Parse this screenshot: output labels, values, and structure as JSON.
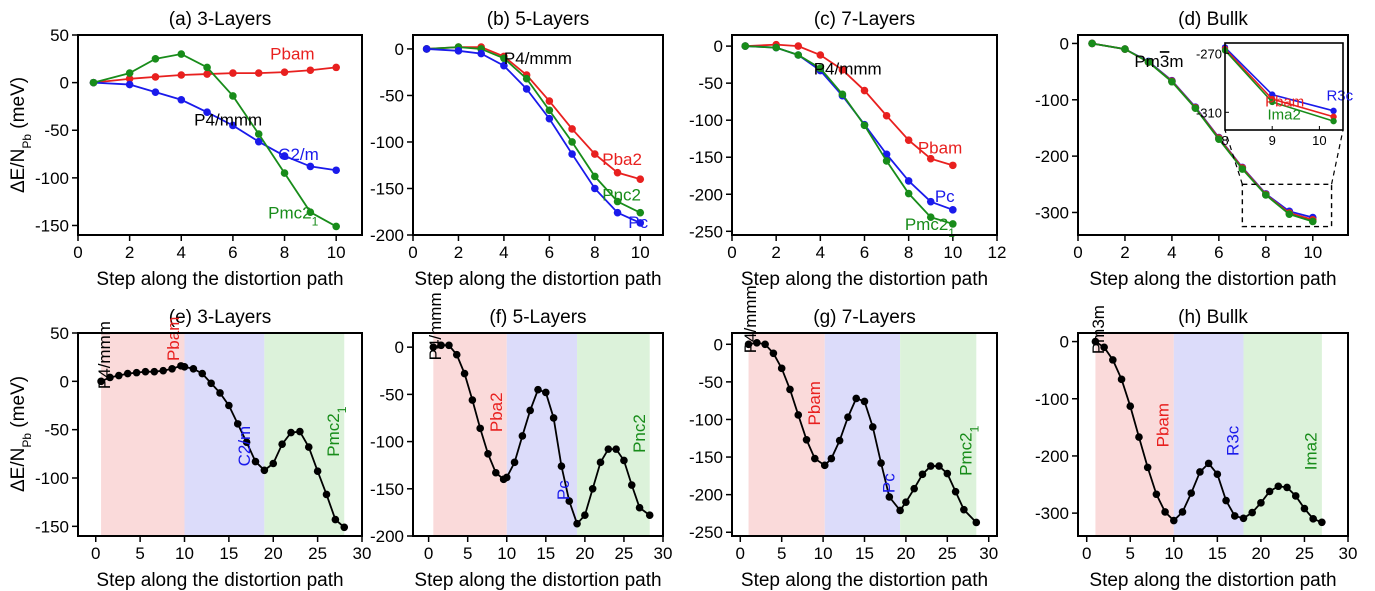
{
  "figure": {
    "ylabel_main": "ΔE/N",
    "ylabel_sub": "Pb",
    "ylabel_unit": " (meV)"
  },
  "colors": {
    "red": "#e8201f",
    "blue": "#1a1aeb",
    "green": "#188c1a",
    "black": "#000000",
    "band_red": "#fadada",
    "band_blue": "#dcdcfa",
    "band_green": "#dcf2da"
  },
  "chart_data": [
    {
      "id": "a",
      "type": "line",
      "title": "(a) 3-Layers",
      "xlabel": "Step along the distortion path",
      "xlim": [
        0,
        11
      ],
      "ylim": [
        -160,
        50
      ],
      "xticks": [
        0,
        2,
        4,
        6,
        8,
        10
      ],
      "yticks": [
        50,
        0,
        -50,
        -100,
        -150
      ],
      "series": [
        {
          "name": "Pbam",
          "color": "red",
          "x": [
            0.6,
            2,
            3,
            4,
            5,
            6,
            7,
            8,
            9,
            10
          ],
          "y": [
            0,
            4,
            6,
            8,
            9,
            10,
            10,
            11,
            13,
            16
          ]
        },
        {
          "name": "C2/m",
          "color": "blue",
          "x": [
            0.6,
            2,
            3,
            4,
            5,
            6,
            7,
            8,
            9,
            10
          ],
          "y": [
            0,
            -2,
            -10,
            -18,
            -31,
            -45,
            -62,
            -77,
            -88,
            -92
          ]
        },
        {
          "name": "Pmc2",
          "sub": "1",
          "color": "green",
          "x": [
            0.6,
            2,
            3,
            4,
            5,
            6,
            7,
            8,
            9,
            10
          ],
          "y": [
            0,
            10,
            25,
            30,
            16,
            -14,
            -54,
            -95,
            -136,
            -151
          ]
        }
      ],
      "labels": [
        {
          "text": "P4/mmm",
          "color": "black",
          "x": 4.5,
          "y": -45
        }
      ]
    },
    {
      "id": "b",
      "type": "line",
      "title": "(b) 5-Layers",
      "xlabel": "Step along the distortion path",
      "xlim": [
        0,
        11
      ],
      "ylim": [
        -200,
        15
      ],
      "xticks": [
        0,
        2,
        4,
        6,
        8,
        10
      ],
      "yticks": [
        0,
        -50,
        -100,
        -150,
        -200
      ],
      "series": [
        {
          "name": "Pba2",
          "color": "red",
          "x": [
            0.6,
            2,
            3,
            4,
            5,
            6,
            7,
            8,
            9,
            10
          ],
          "y": [
            0,
            2,
            2,
            -8,
            -28,
            -56,
            -86,
            -113,
            -133,
            -140
          ]
        },
        {
          "name": "Pnc2",
          "color": "green",
          "x": [
            0.6,
            2,
            3,
            4,
            5,
            6,
            7,
            8,
            9,
            10
          ],
          "y": [
            0,
            2,
            0,
            -10,
            -32,
            -66,
            -100,
            -137,
            -164,
            -176
          ]
        },
        {
          "name": "Pc",
          "color": "blue",
          "x": [
            0.6,
            2,
            3,
            4,
            5,
            6,
            7,
            8,
            9,
            10
          ],
          "y": [
            0,
            -2,
            -5,
            -18,
            -43,
            -75,
            -113,
            -150,
            -176,
            -187
          ]
        }
      ],
      "labels": [
        {
          "text": "P4/mmm",
          "color": "black",
          "x": 4.0,
          "y": -16
        }
      ]
    },
    {
      "id": "c",
      "type": "line",
      "title": "(c) 7-Layers",
      "xlabel": "Step along the distortion path",
      "xlim": [
        0,
        12
      ],
      "ylim": [
        -255,
        15
      ],
      "xticks": [
        0,
        2,
        4,
        6,
        8,
        10,
        12
      ],
      "yticks": [
        0,
        -50,
        -100,
        -150,
        -200,
        -250
      ],
      "series": [
        {
          "name": "Pbam",
          "color": "red",
          "x": [
            0.6,
            2,
            3,
            4,
            5,
            6,
            7,
            8,
            9,
            10
          ],
          "y": [
            0,
            2,
            0,
            -12,
            -32,
            -60,
            -94,
            -127,
            -152,
            -161
          ]
        },
        {
          "name": "Pc",
          "color": "blue",
          "x": [
            0.6,
            2,
            3,
            4,
            5,
            6,
            7,
            8,
            9,
            10
          ],
          "y": [
            0,
            -2,
            -12,
            -33,
            -67,
            -106,
            -146,
            -182,
            -210,
            -221
          ]
        },
        {
          "name": "Pmc2",
          "sub": "1",
          "color": "green",
          "x": [
            0.6,
            2,
            3,
            4,
            5,
            6,
            7,
            8,
            9,
            10
          ],
          "y": [
            0,
            -2,
            -12,
            -30,
            -65,
            -107,
            -155,
            -199,
            -231,
            -240
          ]
        }
      ],
      "labels": [
        {
          "text": "P4/mmm",
          "color": "black",
          "x": 3.7,
          "y": -38
        }
      ]
    },
    {
      "id": "d",
      "type": "line",
      "title": "(d) Bullk",
      "xlabel": "Step along the distortion path",
      "xlim": [
        0,
        11.5
      ],
      "ylim": [
        -340,
        15
      ],
      "xticks": [
        0,
        2,
        4,
        6,
        8,
        10
      ],
      "yticks": [
        0,
        -100,
        -200,
        -300
      ],
      "series": [
        {
          "name": "R3c",
          "color": "blue",
          "x": [
            0.6,
            2,
            3,
            4,
            5,
            6,
            7,
            8,
            9,
            10
          ],
          "y": [
            0,
            -10,
            -32,
            -66,
            -113,
            -167,
            -220,
            -267,
            -298,
            -309
          ]
        },
        {
          "name": "Pbam",
          "color": "red",
          "x": [
            0.6,
            2,
            3,
            4,
            5,
            6,
            7,
            8,
            9,
            10
          ],
          "y": [
            0,
            -10,
            -33,
            -67,
            -114,
            -168,
            -221,
            -268,
            -301,
            -313
          ]
        },
        {
          "name": "Ima2",
          "color": "green",
          "x": [
            0.6,
            2,
            3,
            4,
            5,
            6,
            7,
            8,
            9,
            10
          ],
          "y": [
            0,
            -10,
            -33,
            -68,
            -115,
            -170,
            -223,
            -269,
            -303,
            -316
          ]
        }
      ],
      "labels": [
        {
          "text": "Pm3m",
          "color": "black",
          "x": 2.4,
          "y": -42
        }
      ],
      "inset": {
        "xlim": [
          8,
          10.5
        ],
        "ylim": [
          -322,
          -263
        ],
        "xticks": [
          8,
          9,
          10
        ],
        "yticks": [
          -270,
          -310
        ],
        "series": [
          {
            "color": "blue",
            "x": [
              8,
              9,
              10.3
            ],
            "y": [
              -266,
              -298,
              -309
            ]
          },
          {
            "color": "red",
            "x": [
              8,
              9,
              10.3
            ],
            "y": [
              -267,
              -301,
              -313
            ]
          },
          {
            "color": "green",
            "x": [
              8,
              9,
              10.3
            ],
            "y": [
              -268,
              -303,
              -316
            ]
          }
        ],
        "labels": [
          {
            "text": "R3c",
            "color": "blue",
            "x": 10.15,
            "y": -302
          },
          {
            "text": "Pbam",
            "color": "red",
            "x": 8.85,
            "y": -306
          },
          {
            "text": "Ima2",
            "color": "green",
            "x": 8.9,
            "y": -315
          }
        ],
        "zoom_box": {
          "x": [
            7.0,
            10.8
          ],
          "y": [
            -250,
            -325
          ]
        }
      }
    },
    {
      "id": "e",
      "type": "line",
      "title": "(e) 3-Layers",
      "xlabel": "Step along the distortion path",
      "xlim": [
        -2,
        30
      ],
      "ylim": [
        -160,
        50
      ],
      "xticks": [
        0,
        5,
        10,
        15,
        20,
        25,
        30
      ],
      "yticks": [
        50,
        0,
        -50,
        -100,
        -150
      ],
      "bands": [
        {
          "color": "band_red",
          "x": [
            0.6,
            10
          ]
        },
        {
          "color": "band_blue",
          "x": [
            10,
            19
          ]
        },
        {
          "color": "band_green",
          "x": [
            19,
            28
          ]
        }
      ],
      "series": [
        {
          "color": "black",
          "x": [
            0.6,
            1.6,
            2.6,
            3.6,
            4.6,
            5.6,
            6.6,
            7.6,
            8.6,
            9.6,
            10,
            11,
            12,
            13,
            14,
            15,
            16,
            17,
            18,
            19,
            20,
            21,
            22,
            23,
            24,
            25,
            26,
            27,
            28
          ],
          "y": [
            0,
            4,
            6,
            8,
            9,
            10,
            10,
            11,
            13,
            16,
            15,
            13,
            8,
            -2,
            -12,
            -25,
            -44,
            -63,
            -83,
            -92,
            -85,
            -65,
            -53,
            -52,
            -68,
            -93,
            -117,
            -143,
            -151
          ]
        }
      ],
      "labels": [
        {
          "text": "P4/mmm",
          "color": "black",
          "x": 1.6,
          "y": -8,
          "rotate": true
        },
        {
          "text": "Pbam",
          "color": "red",
          "x": 9.4,
          "y": 21,
          "rotate": true
        },
        {
          "text": "C2/m",
          "color": "blue",
          "x": 17.4,
          "y": -88,
          "rotate": true
        },
        {
          "text": "Pmc2",
          "sub": "1",
          "color": "green",
          "x": 27.4,
          "y": -78,
          "rotate": true
        }
      ]
    },
    {
      "id": "f",
      "type": "line",
      "title": "(f) 5-Layers",
      "xlabel": "Step along the distortion path",
      "xlim": [
        -2,
        30
      ],
      "ylim": [
        -200,
        15
      ],
      "xticks": [
        0,
        5,
        10,
        15,
        20,
        25,
        30
      ],
      "yticks": [
        0,
        -50,
        -100,
        -150,
        -200
      ],
      "bands": [
        {
          "color": "band_red",
          "x": [
            0.6,
            10
          ]
        },
        {
          "color": "band_blue",
          "x": [
            10,
            19
          ]
        },
        {
          "color": "band_green",
          "x": [
            19,
            28.3
          ]
        }
      ],
      "series": [
        {
          "color": "black",
          "x": [
            0.6,
            1.6,
            2.6,
            3.6,
            4.6,
            5.6,
            6.6,
            7.6,
            8.6,
            9.6,
            10,
            11,
            12,
            13,
            14,
            15,
            16,
            17,
            18,
            19,
            20,
            21,
            22,
            23,
            24,
            25,
            26,
            27,
            28.3
          ],
          "y": [
            0,
            2,
            2,
            -8,
            -28,
            -56,
            -86,
            -113,
            -133,
            -140,
            -138,
            -122,
            -94,
            -67,
            -45,
            -48,
            -75,
            -126,
            -163,
            -187,
            -178,
            -150,
            -122,
            -108,
            -108,
            -120,
            -146,
            -170,
            -178
          ]
        }
      ],
      "labels": [
        {
          "text": "P4/mmm",
          "color": "black",
          "x": 1.6,
          "y": -14,
          "rotate": true
        },
        {
          "text": "Pba2",
          "color": "red",
          "x": 9.4,
          "y": -90,
          "rotate": true
        },
        {
          "text": "Pc",
          "color": "blue",
          "x": 18.0,
          "y": -162,
          "rotate": true
        },
        {
          "text": "Pnc2",
          "color": "green",
          "x": 27.7,
          "y": -112,
          "rotate": true
        }
      ]
    },
    {
      "id": "g",
      "type": "line",
      "title": "(g) 7-Layers",
      "xlabel": "Step along the distortion path",
      "xlim": [
        -1,
        31
      ],
      "ylim": [
        -255,
        15
      ],
      "xticks": [
        0,
        5,
        10,
        15,
        20,
        25,
        30
      ],
      "yticks": [
        0,
        -50,
        -100,
        -150,
        -200,
        -250
      ],
      "bands": [
        {
          "color": "band_red",
          "x": [
            1,
            10.2
          ]
        },
        {
          "color": "band_blue",
          "x": [
            10.2,
            19.3
          ]
        },
        {
          "color": "band_green",
          "x": [
            19.3,
            28.5
          ]
        }
      ],
      "series": [
        {
          "color": "black",
          "x": [
            1,
            2,
            3,
            4,
            5,
            6,
            7,
            8,
            9,
            10.2,
            11,
            12,
            13,
            14,
            15,
            16,
            17,
            18,
            19.3,
            20,
            21,
            22,
            23,
            24,
            25,
            26,
            27,
            28.5
          ],
          "y": [
            0,
            2,
            0,
            -12,
            -32,
            -60,
            -94,
            -127,
            -152,
            -161,
            -152,
            -128,
            -97,
            -72,
            -76,
            -110,
            -158,
            -203,
            -221,
            -210,
            -192,
            -173,
            -162,
            -162,
            -172,
            -196,
            -220,
            -237
          ]
        }
      ],
      "labels": [
        {
          "text": "P4/mmm",
          "color": "black",
          "x": 1.9,
          "y": -12,
          "rotate": true
        },
        {
          "text": "Pbam",
          "color": "red",
          "x": 9.6,
          "y": -108,
          "rotate": true
        },
        {
          "text": "Pc",
          "color": "blue",
          "x": 18.6,
          "y": -198,
          "rotate": true
        },
        {
          "text": "Pmc2",
          "sub": "1",
          "color": "green",
          "x": 27.9,
          "y": -175,
          "rotate": true
        }
      ]
    },
    {
      "id": "h",
      "type": "line",
      "title": "(h) Bullk",
      "xlabel": "Step along the distortion path",
      "xlim": [
        -1,
        30
      ],
      "ylim": [
        -340,
        15
      ],
      "xticks": [
        0,
        5,
        10,
        15,
        20,
        25,
        30
      ],
      "yticks": [
        0,
        -100,
        -200,
        -300
      ],
      "bands": [
        {
          "color": "band_red",
          "x": [
            1,
            10
          ]
        },
        {
          "color": "band_blue",
          "x": [
            10,
            18
          ]
        },
        {
          "color": "band_green",
          "x": [
            18,
            27
          ]
        }
      ],
      "series": [
        {
          "color": "black",
          "x": [
            1,
            2,
            3,
            4,
            5,
            6,
            7,
            8,
            9,
            10,
            11,
            12,
            13,
            14,
            15,
            16,
            17,
            18,
            19,
            20,
            21,
            22,
            23,
            24,
            25,
            26,
            27
          ],
          "y": [
            0,
            -10,
            -32,
            -66,
            -113,
            -167,
            -220,
            -267,
            -298,
            -313,
            -298,
            -265,
            -228,
            -213,
            -232,
            -278,
            -305,
            -309,
            -299,
            -282,
            -262,
            -253,
            -255,
            -270,
            -292,
            -310,
            -316
          ]
        }
      ],
      "labels": [
        {
          "text": "Pm3m",
          "color": "black",
          "x": 2.0,
          "y": -22,
          "rotate": true
        },
        {
          "text": "Pbam",
          "color": "red",
          "x": 9.4,
          "y": -185,
          "rotate": true
        },
        {
          "text": "R3c",
          "color": "blue",
          "x": 17.4,
          "y": -200,
          "rotate": true
        },
        {
          "text": "Ima2",
          "color": "green",
          "x": 26.4,
          "y": -225,
          "rotate": true
        }
      ]
    }
  ]
}
